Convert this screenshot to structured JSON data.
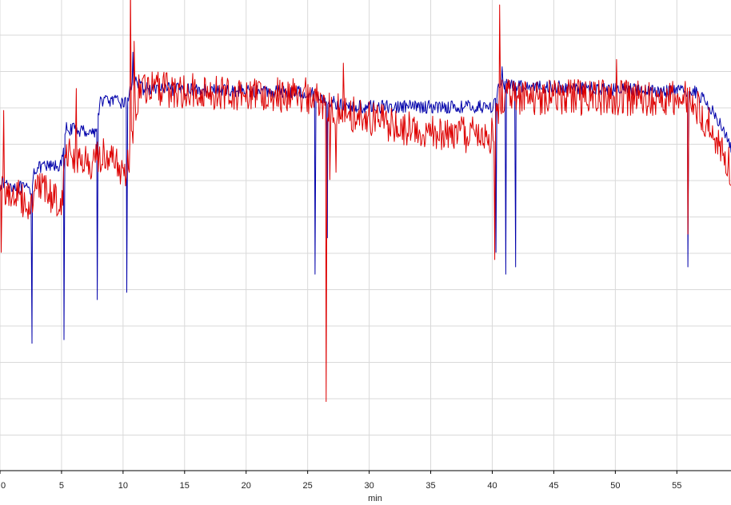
{
  "chart_data": {
    "type": "line",
    "title": "",
    "xlabel": "min",
    "ylabel": "",
    "xlim": [
      0,
      59.4
    ],
    "ylim": [
      0,
      13
    ],
    "x_ticks": [
      0,
      5,
      10,
      15,
      20,
      25,
      30,
      35,
      40,
      45,
      50,
      55
    ],
    "y_grid_count": 14,
    "grid": true,
    "legend": "none",
    "series": [
      {
        "color": "#0000aa",
        "base": [
          [
            0,
            7.9
          ],
          [
            0.3,
            7.9
          ],
          [
            2.5,
            7.7
          ],
          [
            2.8,
            8.3
          ],
          [
            5,
            8.4
          ],
          [
            5.4,
            9.4
          ],
          [
            7.8,
            9.3
          ],
          [
            8.2,
            10.2
          ],
          [
            10.3,
            10.1
          ],
          [
            10.9,
            10.8
          ],
          [
            11.5,
            10.5
          ],
          [
            25,
            10.4
          ],
          [
            28,
            10.0
          ],
          [
            40,
            10.0
          ],
          [
            40.6,
            10.6
          ],
          [
            56.5,
            10.4
          ],
          [
            58,
            9.9
          ],
          [
            59.4,
            8.9
          ]
        ],
        "spikes": [
          [
            2.6,
            3.5
          ],
          [
            5.2,
            3.6
          ],
          [
            7.9,
            4.7
          ],
          [
            10.3,
            4.9
          ],
          [
            10.8,
            11.5
          ],
          [
            25.6,
            5.4
          ],
          [
            26.6,
            6.4
          ],
          [
            40.3,
            6.0
          ],
          [
            40.8,
            11.1
          ],
          [
            41.1,
            5.4
          ],
          [
            41.9,
            5.6
          ],
          [
            55.9,
            5.6
          ]
        ],
        "noise": 0.18
      },
      {
        "color": "#dd0000",
        "base": [
          [
            0,
            7.8
          ],
          [
            2.5,
            7.3
          ],
          [
            2.9,
            7.8
          ],
          [
            5,
            7.4
          ],
          [
            5.4,
            8.8
          ],
          [
            7.5,
            8.3
          ],
          [
            8.2,
            8.7
          ],
          [
            10.3,
            8.2
          ],
          [
            11.3,
            10.5
          ],
          [
            25,
            10.3
          ],
          [
            27,
            10.0
          ],
          [
            28.5,
            9.8
          ],
          [
            34,
            9.3
          ],
          [
            40,
            9.2
          ],
          [
            40.8,
            10.3
          ],
          [
            56,
            10.2
          ],
          [
            57.5,
            9.6
          ],
          [
            59.4,
            8.3
          ]
        ],
        "spikes": [
          [
            0.3,
            9.9
          ],
          [
            0.1,
            6.0
          ],
          [
            6.2,
            10.5
          ],
          [
            10.6,
            13.4
          ],
          [
            10.9,
            11.8
          ],
          [
            26.5,
            1.9
          ],
          [
            26.8,
            8.0
          ],
          [
            27.3,
            8.2
          ],
          [
            27.9,
            11.2
          ],
          [
            40.2,
            5.8
          ],
          [
            40.6,
            12.8
          ],
          [
            50.1,
            11.3
          ],
          [
            55.9,
            6.5
          ]
        ],
        "noise": 0.5
      }
    ]
  }
}
